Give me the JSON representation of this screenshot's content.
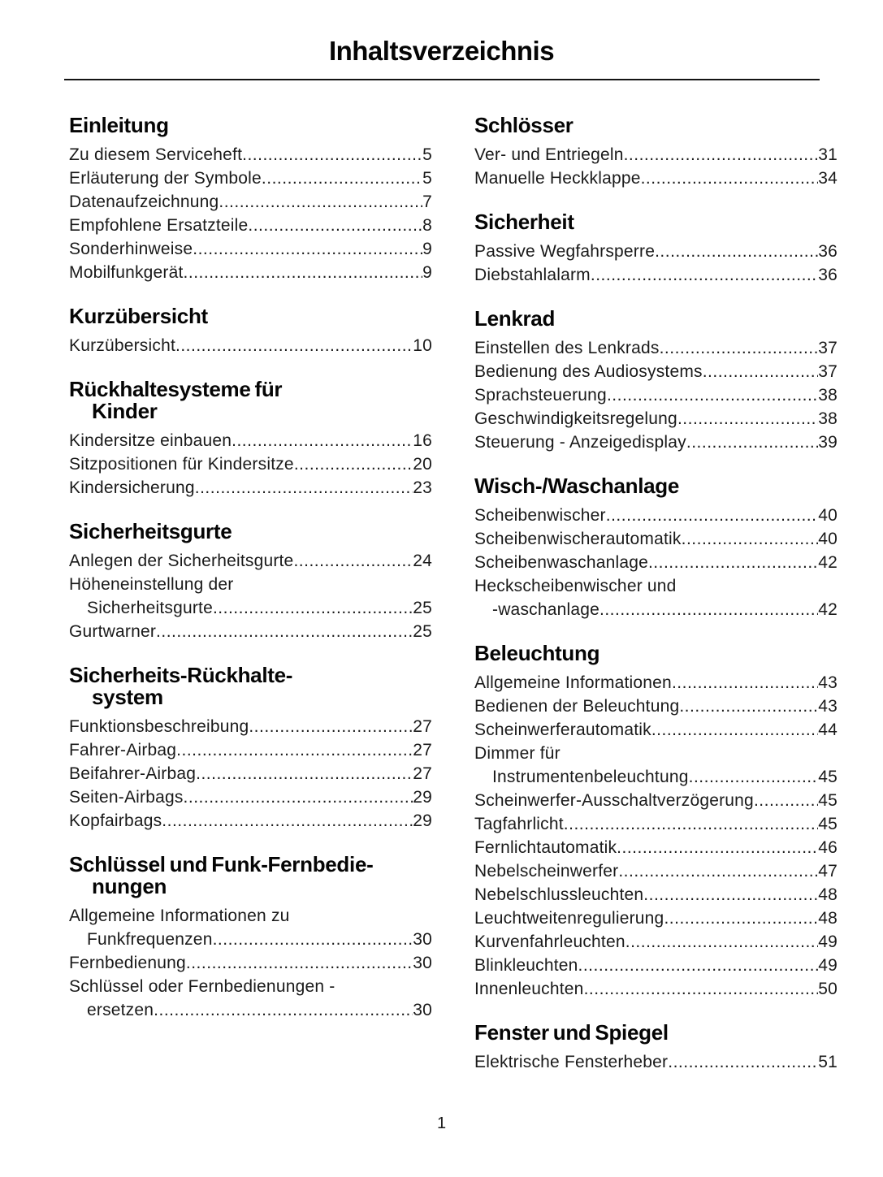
{
  "page": {
    "title": "Inhaltsverzeichnis",
    "page_number": "1"
  },
  "colors": {
    "text": "#1a1a1a",
    "heading": "#050505",
    "rule": "#141414",
    "background": "#ffffff"
  },
  "columns": [
    {
      "sections": [
        {
          "heading": [
            "Einleitung"
          ],
          "entries": [
            {
              "lines": [
                "Zu diesem Serviceheft"
              ],
              "page": "5"
            },
            {
              "lines": [
                "Erläuterung der Symbole"
              ],
              "page": "5"
            },
            {
              "lines": [
                "Datenaufzeichnung"
              ],
              "page": "7"
            },
            {
              "lines": [
                "Empfohlene Ersatzteile"
              ],
              "page": "8"
            },
            {
              "lines": [
                "Sonderhinweise"
              ],
              "page": "9"
            },
            {
              "lines": [
                "Mobilfunkgerät"
              ],
              "page": "9"
            }
          ]
        },
        {
          "heading": [
            "Kurzübersicht"
          ],
          "entries": [
            {
              "lines": [
                "Kurzübersicht"
              ],
              "page": "10"
            }
          ]
        },
        {
          "heading": [
            "Rückhaltesysteme für",
            "Kinder"
          ],
          "entries": [
            {
              "lines": [
                "Kindersitze einbauen"
              ],
              "page": "16"
            },
            {
              "lines": [
                "Sitzpositionen für Kindersitze"
              ],
              "page": "20"
            },
            {
              "lines": [
                "Kindersicherung"
              ],
              "page": "23"
            }
          ]
        },
        {
          "heading": [
            "Sicherheitsgurte"
          ],
          "entries": [
            {
              "lines": [
                "Anlegen der Sicherheitsgurte"
              ],
              "page": "24"
            },
            {
              "lines": [
                "Höheneinstellung der",
                "Sicherheitsgurte"
              ],
              "page": "25"
            },
            {
              "lines": [
                "Gurtwarner"
              ],
              "page": "25"
            }
          ]
        },
        {
          "heading": [
            "Sicherheits-Rückhalte-",
            "system"
          ],
          "entries": [
            {
              "lines": [
                "Funktionsbeschreibung"
              ],
              "page": "27"
            },
            {
              "lines": [
                "Fahrer-Airbag"
              ],
              "page": "27"
            },
            {
              "lines": [
                "Beifahrer-Airbag"
              ],
              "page": "27"
            },
            {
              "lines": [
                "Seiten-Airbags"
              ],
              "page": "29"
            },
            {
              "lines": [
                "Kopfairbags"
              ],
              "page": "29"
            }
          ]
        },
        {
          "heading": [
            "Schlüssel und Funk-Fernbedie-",
            "nungen"
          ],
          "entries": [
            {
              "lines": [
                "Allgemeine Informationen zu",
                "Funkfrequenzen"
              ],
              "page": "30"
            },
            {
              "lines": [
                "Fernbedienung"
              ],
              "page": "30"
            },
            {
              "lines": [
                "Schlüssel oder Fernbedienungen -",
                "ersetzen"
              ],
              "page": "30"
            }
          ]
        }
      ]
    },
    {
      "sections": [
        {
          "heading": [
            "Schlösser"
          ],
          "entries": [
            {
              "lines": [
                "Ver- und Entriegeln"
              ],
              "page": "31"
            },
            {
              "lines": [
                "Manuelle Heckklappe"
              ],
              "page": "34"
            }
          ]
        },
        {
          "heading": [
            "Sicherheit"
          ],
          "entries": [
            {
              "lines": [
                "Passive Wegfahrsperre"
              ],
              "page": "36"
            },
            {
              "lines": [
                "Diebstahlalarm"
              ],
              "page": "36"
            }
          ]
        },
        {
          "heading": [
            "Lenkrad"
          ],
          "entries": [
            {
              "lines": [
                "Einstellen des Lenkrads"
              ],
              "page": "37"
            },
            {
              "lines": [
                "Bedienung des Audiosystems"
              ],
              "page": "37"
            },
            {
              "lines": [
                "Sprachsteuerung"
              ],
              "page": "38"
            },
            {
              "lines": [
                "Geschwindigkeitsregelung"
              ],
              "page": "38"
            },
            {
              "lines": [
                "Steuerung - Anzeigedisplay"
              ],
              "page": "39"
            }
          ]
        },
        {
          "heading": [
            "Wisch-/Waschanlage"
          ],
          "entries": [
            {
              "lines": [
                "Scheibenwischer"
              ],
              "page": "40"
            },
            {
              "lines": [
                "Scheibenwischerautomatik"
              ],
              "page": "40"
            },
            {
              "lines": [
                "Scheibenwaschanlage"
              ],
              "page": "42"
            },
            {
              "lines": [
                "Heckscheibenwischer und",
                "-waschanlage"
              ],
              "page": "42"
            }
          ]
        },
        {
          "heading": [
            "Beleuchtung"
          ],
          "entries": [
            {
              "lines": [
                "Allgemeine Informationen"
              ],
              "page": "43"
            },
            {
              "lines": [
                "Bedienen der Beleuchtung"
              ],
              "page": "43"
            },
            {
              "lines": [
                "Scheinwerferautomatik"
              ],
              "page": "44"
            },
            {
              "lines": [
                "Dimmer für",
                "Instrumentenbeleuchtung"
              ],
              "page": "45"
            },
            {
              "lines": [
                "Scheinwerfer-Ausschaltverzögerung"
              ],
              "page": "45"
            },
            {
              "lines": [
                "Tagfahrlicht"
              ],
              "page": "45"
            },
            {
              "lines": [
                "Fernlichtautomatik"
              ],
              "page": "46"
            },
            {
              "lines": [
                "Nebelscheinwerfer"
              ],
              "page": "47"
            },
            {
              "lines": [
                "Nebelschlussleuchten"
              ],
              "page": "48"
            },
            {
              "lines": [
                "Leuchtweitenregulierung"
              ],
              "page": "48"
            },
            {
              "lines": [
                "Kurvenfahrleuchten"
              ],
              "page": "49"
            },
            {
              "lines": [
                "Blinkleuchten"
              ],
              "page": "49"
            },
            {
              "lines": [
                "Innenleuchten"
              ],
              "page": "50"
            }
          ]
        },
        {
          "heading": [
            "Fenster und Spiegel"
          ],
          "entries": [
            {
              "lines": [
                "Elektrische Fensterheber"
              ],
              "page": "51"
            }
          ]
        }
      ]
    }
  ]
}
